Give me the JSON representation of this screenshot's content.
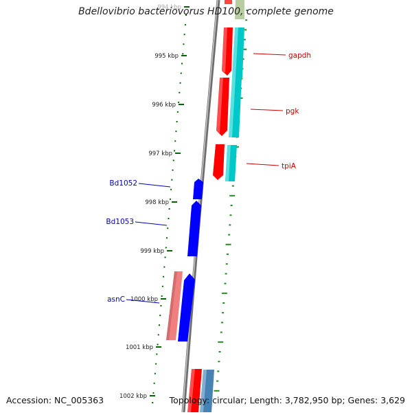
{
  "title": "Bdellovibrio bacteriovorus HD100, complete genome",
  "footer": {
    "accession": "Accession: NC_005363",
    "summary": "Topology: circular; Length: 3,782,950 bp; Genes: 3,629"
  },
  "ticks": [
    {
      "label": "994 kbp"
    },
    {
      "label": "995 kbp"
    },
    {
      "label": "996 kbp"
    },
    {
      "label": "997 kbp"
    },
    {
      "label": "998 kbp"
    },
    {
      "label": "999 kbp"
    },
    {
      "label": "1000 kbp"
    },
    {
      "label": "1001 kbp"
    },
    {
      "label": "1002 kbp"
    }
  ],
  "gene_labels": [
    {
      "name": "gapdh",
      "color": "#cc0000"
    },
    {
      "name": "pgk",
      "color": "#cc0000"
    },
    {
      "name": "tpiA",
      "color": "#cc0000"
    },
    {
      "name": "Bd1052",
      "color": "#0000bb"
    },
    {
      "name": "Bd1053",
      "color": "#0000bb"
    },
    {
      "name": "asnC",
      "color": "#0000bb"
    }
  ],
  "colors": {
    "forward_cds": "#ff0000",
    "forward_rna": "#00cccc",
    "reverse_cds": "#0000ff",
    "reverse_other": "#f08080",
    "backbone": "#808080",
    "tick": "#006400",
    "gc_skew": "#228b22"
  }
}
